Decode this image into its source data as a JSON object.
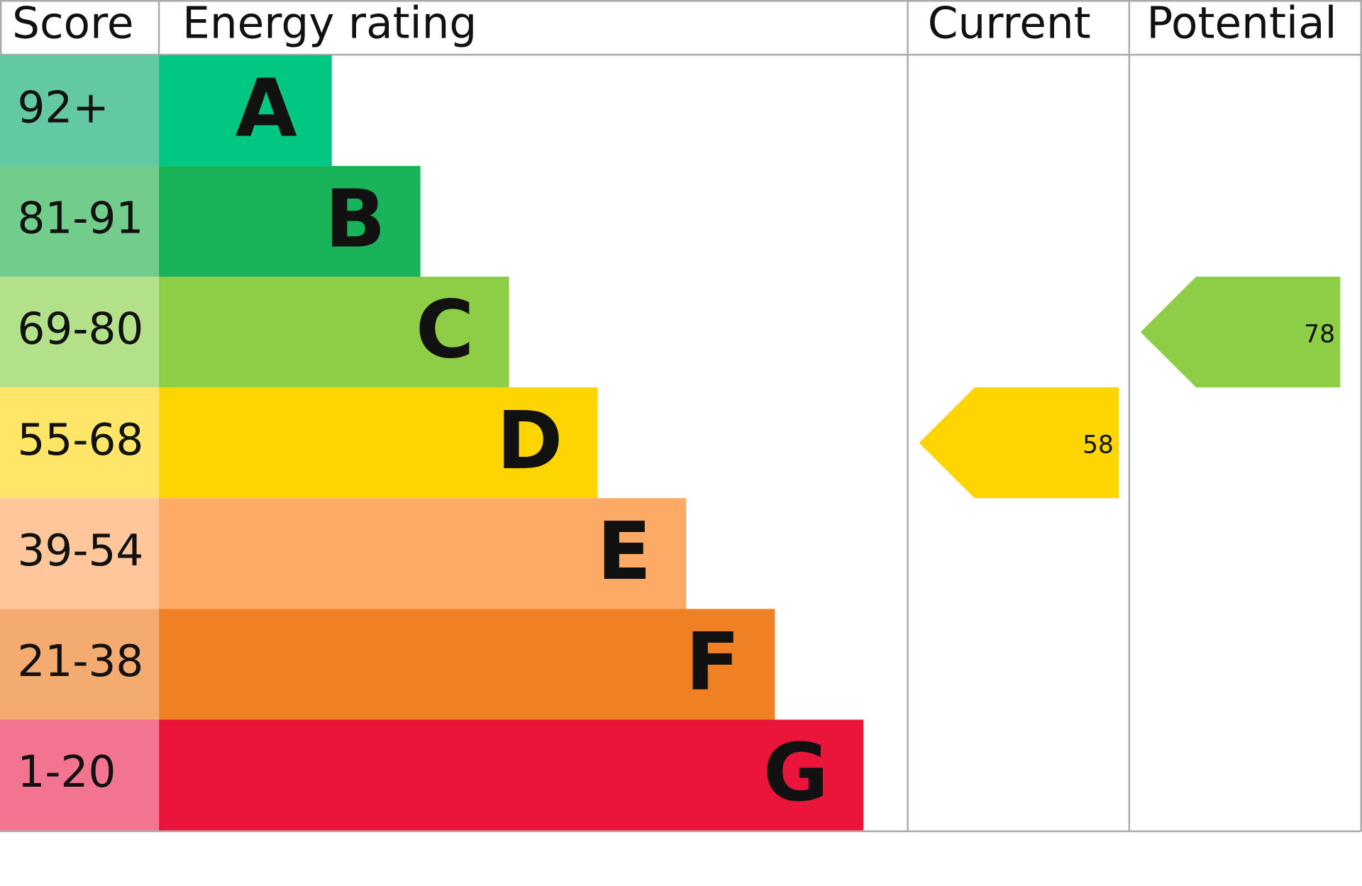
{
  "header": {
    "score": "Score",
    "rating": "Energy rating",
    "current": "Current",
    "potential": "Potential"
  },
  "bands": [
    {
      "score": "92+",
      "letter": "A",
      "color": "#00c781",
      "score_color": "#63c9a3"
    },
    {
      "score": "81-91",
      "letter": "B",
      "color": "#19b459",
      "score_color": "#72cd8c"
    },
    {
      "score": "69-80",
      "letter": "C",
      "color": "#8dce46",
      "score_color": "#b3e18a"
    },
    {
      "score": "55-68",
      "letter": "D",
      "color": "#ffd500",
      "score_color": "#ffe666"
    },
    {
      "score": "39-54",
      "letter": "E",
      "color": "#fcaa65",
      "score_color": "#fdc79b"
    },
    {
      "score": "21-38",
      "letter": "F",
      "color": "#ef8023",
      "score_color": "#f4ab6f"
    },
    {
      "score": "1-20",
      "letter": "G",
      "color": "#e9153b",
      "score_color": "#f27491"
    }
  ],
  "current": {
    "value": 58
  },
  "potential": {
    "value": 78
  }
}
